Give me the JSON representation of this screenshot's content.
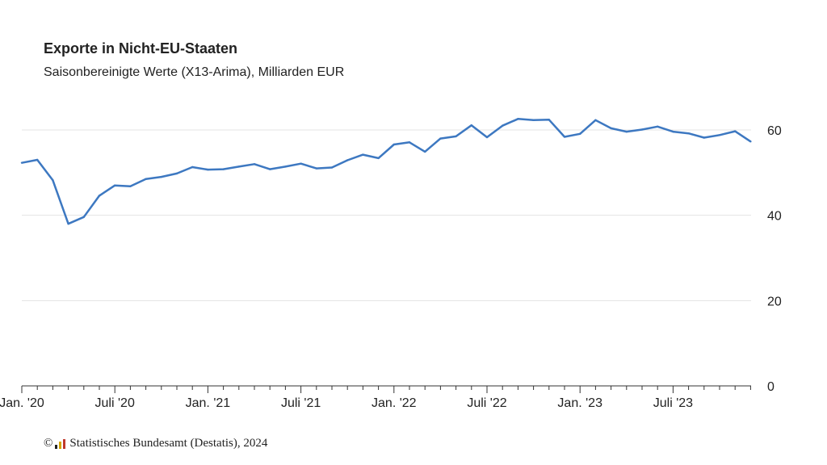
{
  "chart_data": {
    "type": "line",
    "title": "Exporte in Nicht-EU-Staaten",
    "subtitle": "Saisonbereinigte Werte (X13-Arima), Milliarden EUR",
    "x_labels": [
      "Jan. '20",
      "Juli '20",
      "Jan. '21",
      "Juli '21",
      "Jan. '22",
      "Juli '22",
      "Jan. '23",
      "Juli '23"
    ],
    "x_start": "2020-01",
    "ylim": [
      0,
      70
    ],
    "yticks": [
      0,
      20,
      40,
      60
    ],
    "y_axis_side": "right",
    "grid": true,
    "series": [
      {
        "color": "#3d78c1",
        "values": [
          52.3,
          53.0,
          48.2,
          38.0,
          39.6,
          44.6,
          47.0,
          46.8,
          48.5,
          49.0,
          49.8,
          51.3,
          50.7,
          50.8,
          51.4,
          52.0,
          50.8,
          51.4,
          52.1,
          51.0,
          51.2,
          52.9,
          54.2,
          53.4,
          56.6,
          57.1,
          54.9,
          58.0,
          58.5,
          61.1,
          58.3,
          61.0,
          62.6,
          62.3,
          62.4,
          58.4,
          59.1,
          62.3,
          60.4,
          59.6,
          60.1,
          60.8,
          59.6,
          59.2,
          58.2,
          58.8,
          59.7,
          57.3
        ]
      }
    ]
  },
  "source": {
    "copyright": "©",
    "text": "Statistisches Bundesamt (Destatis), 2024",
    "logo_colors": [
      "#222222",
      "#d4a600",
      "#c0392b"
    ]
  }
}
